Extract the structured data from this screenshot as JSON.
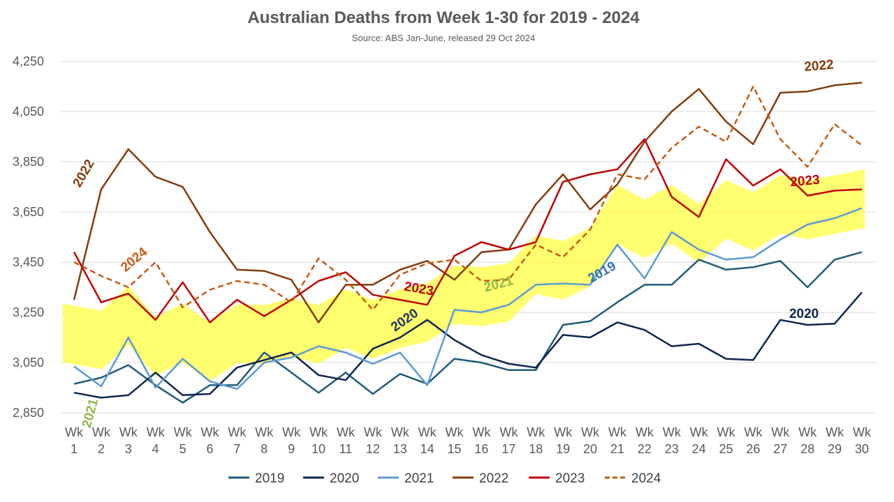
{
  "chart_data": {
    "type": "line",
    "title": "Australian Deaths from Week 1-30 for 2019 - 2024",
    "subtitle": "Source: ABS Jan-June, released 29 Oct 2024",
    "xlabel": "",
    "ylabel": "",
    "ylim": [
      2850,
      4250
    ],
    "yticks": [
      2850,
      3050,
      3250,
      3450,
      3650,
      3850,
      4050,
      4250
    ],
    "ytick_labels": [
      "2,850",
      "3,050",
      "3,250",
      "3,450",
      "3,650",
      "3,850",
      "4,050",
      "4,250"
    ],
    "grid": true,
    "legend_position": "bottom",
    "categories": [
      "Wk 1",
      "Wk 2",
      "Wk 3",
      "Wk 4",
      "Wk 5",
      "Wk 6",
      "Wk 7",
      "Wk 8",
      "Wk 9",
      "Wk 10",
      "Wk 11",
      "Wk 12",
      "Wk 13",
      "Wk 14",
      "Wk 15",
      "Wk 16",
      "Wk 17",
      "Wk 18",
      "Wk 19",
      "Wk 20",
      "Wk 21",
      "Wk 22",
      "Wk 23",
      "Wk 24",
      "Wk 25",
      "Wk 26",
      "Wk 27",
      "Wk 28",
      "Wk 29",
      "Wk 30"
    ],
    "series": [
      {
        "name": "2019",
        "color": "#1f5c7a",
        "dash": false,
        "values": [
          2965,
          2990,
          3040,
          2960,
          2890,
          2960,
          2960,
          3090,
          3010,
          2930,
          3010,
          2925,
          3005,
          2965,
          3065,
          3050,
          3020,
          3020,
          3200,
          3215,
          3290,
          3360,
          3360,
          3460,
          3420,
          3430,
          3455,
          3350,
          3460,
          3490
        ]
      },
      {
        "name": "2020",
        "color": "#0c2650",
        "dash": false,
        "values": [
          2930,
          2910,
          2920,
          3010,
          2920,
          2925,
          3030,
          3060,
          3090,
          3000,
          2980,
          3105,
          3150,
          3220,
          3140,
          3080,
          3045,
          3030,
          3160,
          3150,
          3210,
          3180,
          3115,
          3125,
          3065,
          3060,
          3220,
          3200,
          3205,
          3330
        ]
      },
      {
        "name": "2021",
        "color": "#5b9bd5",
        "dash": false,
        "values": [
          3035,
          2955,
          3150,
          2950,
          3065,
          2975,
          2945,
          3050,
          3070,
          3115,
          3090,
          3045,
          3090,
          2960,
          3260,
          3250,
          3280,
          3360,
          3365,
          3360,
          3520,
          3385,
          3570,
          3500,
          3460,
          3470,
          3540,
          3600,
          3625,
          3665
        ]
      },
      {
        "name": "2022",
        "color": "#843c0c",
        "dash": false,
        "values": [
          3300,
          3740,
          3900,
          3790,
          3750,
          3570,
          3420,
          3415,
          3380,
          3210,
          3360,
          3360,
          3420,
          3455,
          3380,
          3490,
          3500,
          3680,
          3800,
          3660,
          3760,
          3930,
          4050,
          4140,
          4010,
          3920,
          4125,
          4130,
          4155,
          4165
        ]
      },
      {
        "name": "2023",
        "color": "#c00000",
        "dash": false,
        "values": [
          3490,
          3290,
          3325,
          3220,
          3370,
          3210,
          3300,
          3235,
          3300,
          3375,
          3410,
          3320,
          3300,
          3280,
          3475,
          3530,
          3500,
          3530,
          3770,
          3800,
          3820,
          3940,
          3710,
          3630,
          3860,
          3755,
          3820,
          3715,
          3735,
          3740
        ]
      },
      {
        "name": "2024",
        "color": "#c55a11",
        "dash": true,
        "values": [
          3450,
          3395,
          3350,
          3450,
          3270,
          3340,
          3375,
          3360,
          3290,
          3465,
          3380,
          3260,
          3400,
          3445,
          3460,
          3375,
          3380,
          3520,
          3470,
          3580,
          3800,
          3780,
          3905,
          3990,
          3930,
          4150,
          3940,
          3830,
          4000,
          3915
        ]
      }
    ],
    "annotations": [
      {
        "text": "2022",
        "color": "#843c0c",
        "near_week": 2
      },
      {
        "text": "2024",
        "color": "#c55a11",
        "near_week": 3
      },
      {
        "text": "2021",
        "color": "#8fb84a",
        "near_week": 2
      },
      {
        "text": "2023",
        "color": "#c00000",
        "near_week": 13
      },
      {
        "text": "2020",
        "color": "#1f3864",
        "near_week": 13
      },
      {
        "text": "2021",
        "color": "#8fb84a",
        "near_week": 17
      },
      {
        "text": "2019",
        "color": "#2e75b6",
        "near_week": 21
      },
      {
        "text": "2020",
        "color": "#0c2650",
        "near_week": 29
      },
      {
        "text": "2023",
        "color": "#c00000",
        "near_week": 29
      },
      {
        "text": "2022",
        "color": "#843c0c",
        "near_week": 29
      }
    ],
    "highlight": {
      "color": "#ffff33",
      "description": "yellow highlighter band across weeks 1-30"
    }
  }
}
